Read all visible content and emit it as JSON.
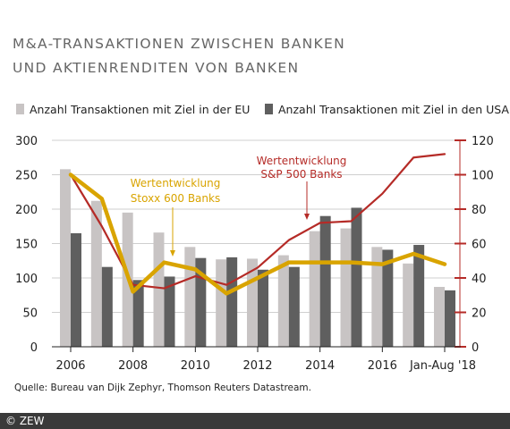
{
  "title": {
    "line1": "M&A-TRANSAKTIONEN ZWISCHEN BANKEN",
    "line2": "UND AKTIENRENDITEN VON BANKEN"
  },
  "source": "Quelle: Bureau van Dijk Zephyr, Thomson Reuters Datastream.",
  "footer": "© ZEW",
  "chart_data": {
    "type": "bar",
    "categories": [
      "2006",
      "2007",
      "2008",
      "2009",
      "2010",
      "2011",
      "2012",
      "2013",
      "2014",
      "2015",
      "2016",
      "2017",
      "Jan-Aug '18"
    ],
    "x_tick_labels": [
      "2006",
      "2008",
      "2010",
      "2012",
      "2014",
      "2016",
      "Jan-Aug '18"
    ],
    "x_tick_indices": [
      0,
      2,
      4,
      6,
      8,
      10,
      12
    ],
    "series": [
      {
        "name": "Anzahl Transaktionen mit Ziel in der EU",
        "type": "bar",
        "axis": "left",
        "color": "#c8c4c4",
        "values": [
          258,
          212,
          195,
          166,
          145,
          127,
          128,
          133,
          168,
          172,
          145,
          121,
          87
        ]
      },
      {
        "name": "Anzahl Transaktionen mit Ziel in den USA",
        "type": "bar",
        "axis": "left",
        "color": "#5f5f5f",
        "values": [
          165,
          116,
          97,
          102,
          129,
          130,
          112,
          116,
          190,
          202,
          141,
          148,
          82
        ]
      },
      {
        "label": "Wertentwicklung\nS&P 500 Banks",
        "type": "line",
        "axis": "right",
        "color": "#b52b27",
        "values": [
          100,
          70,
          36,
          34,
          41,
          36,
          46,
          62,
          72,
          73,
          89,
          110,
          112
        ]
      },
      {
        "label": "Wertentwicklung\nStoxx 600 Banks",
        "type": "line",
        "axis": "right",
        "color": "#d9a400",
        "values": [
          100,
          86,
          32,
          49,
          45,
          31,
          40,
          49,
          49,
          49,
          48,
          54,
          48
        ]
      }
    ],
    "left_axis": {
      "min": 0,
      "max": 300,
      "ticks": [
        0,
        50,
        100,
        150,
        200,
        250,
        300
      ]
    },
    "right_axis": {
      "min": 0,
      "max": 120,
      "ticks": [
        0,
        20,
        40,
        60,
        80,
        100,
        120
      ]
    },
    "grid": "horizontal",
    "legend_position": "top",
    "annotations": [
      {
        "text": "Wertentwicklung",
        "text2": "S&P 500 Banks",
        "color": "#b52b27"
      },
      {
        "text": "Wertentwicklung",
        "text2": "Stoxx 600 Banks",
        "color": "#d9a400"
      }
    ]
  }
}
